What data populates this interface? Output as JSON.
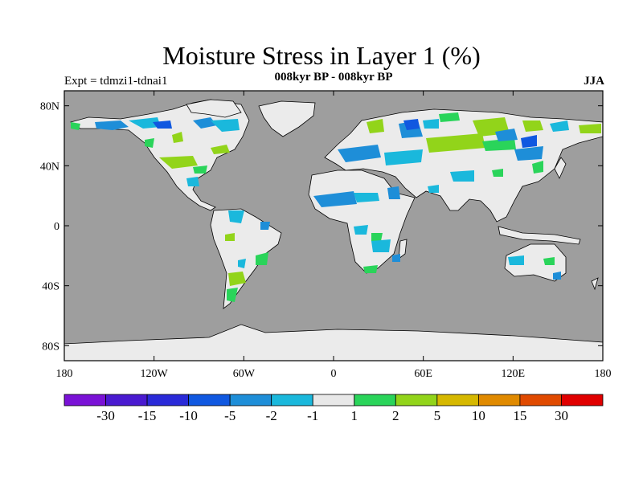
{
  "title": "Moisture Stress in Layer 1 (%)",
  "subtitle": "008kyr BP - 008kyr BP",
  "experiment": "Expt = tdmzi1-tdnai1",
  "season": "JJA",
  "colors": {
    "ocean": "#9e9e9e",
    "land": "#ebebeb",
    "coast": "#000000"
  },
  "axes": {
    "lat_ticks": [
      "80N",
      "40N",
      "0",
      "40S",
      "80S"
    ],
    "lat_values": [
      80,
      40,
      0,
      -40,
      -80
    ],
    "lon_ticks": [
      "180",
      "120W",
      "60W",
      "0",
      "60E",
      "120E",
      "180"
    ],
    "lon_values": [
      -180,
      -120,
      -60,
      0,
      60,
      120,
      180
    ],
    "lon_range": [
      -180,
      180
    ],
    "lat_range": [
      -90,
      90
    ]
  },
  "colorbar": {
    "colors": [
      "#7a12d6",
      "#4a1ad0",
      "#2a2ad8",
      "#1058e0",
      "#1e8ed8",
      "#1ab8dc",
      "#e8e8e8",
      "#2ad45a",
      "#92d41a",
      "#d6b800",
      "#e08a00",
      "#e04a00",
      "#e00000"
    ],
    "labels": [
      "-30",
      "-15",
      "-10",
      "-5",
      "-2",
      "-1",
      "1",
      "2",
      "5",
      "10",
      "15",
      "30"
    ]
  }
}
